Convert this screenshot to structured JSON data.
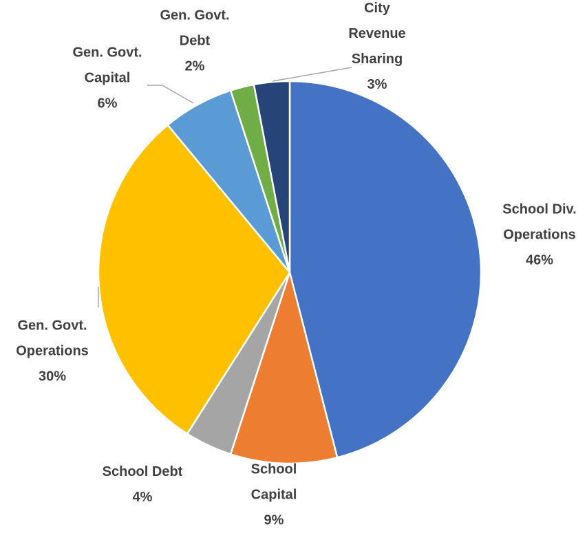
{
  "chart_data": {
    "type": "pie",
    "title": "",
    "start_angle_deg": 0,
    "direction": "clockwise",
    "legend": "none",
    "slices": [
      {
        "label_lines": [
          "School Div.",
          "Operations"
        ],
        "value": 46,
        "value_label": "46%",
        "color": "#4472c4"
      },
      {
        "label_lines": [
          "School",
          "Capital"
        ],
        "value": 9,
        "value_label": "9%",
        "color": "#ed7d31"
      },
      {
        "label_lines": [
          "School Debt"
        ],
        "value": 4,
        "value_label": "4%",
        "color": "#a5a5a5"
      },
      {
        "label_lines": [
          "Gen. Govt.",
          "Operations"
        ],
        "value": 30,
        "value_label": "30%",
        "color": "#ffc000"
      },
      {
        "label_lines": [
          "Gen. Govt.",
          "Capital"
        ],
        "value": 6,
        "value_label": "6%",
        "color": "#5b9bd5"
      },
      {
        "label_lines": [
          "Gen. Govt.",
          "Debt"
        ],
        "value": 2,
        "value_label": "2%",
        "color": "#70ad47"
      },
      {
        "label_lines": [
          "City",
          "Revenue",
          "Sharing"
        ],
        "value": 3,
        "value_label": "3%",
        "color": "#264478"
      }
    ]
  }
}
